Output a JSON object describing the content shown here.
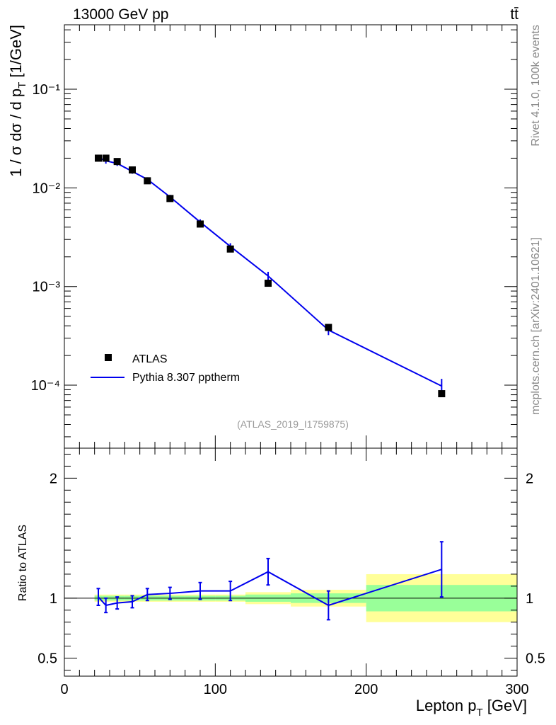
{
  "header": {
    "energy_label": "13000 GeV pp",
    "process_label": "tt̄"
  },
  "side_text": {
    "version": "Rivet 4.1.0,  100k events",
    "source": "mcplots.cern.ch [arXiv:2401.10621]"
  },
  "analysis_label": "(ATLAS_2019_I1759875)",
  "colors": {
    "mc": "#0000ee",
    "data": "#000000",
    "band_inner": "#99ff99",
    "band_outer": "#ffff99"
  },
  "chart_data": [
    {
      "panel": "main",
      "type": "scatter",
      "yscale": "log",
      "ylabel": "1 / σ  dσ / d pT [1/GeV]",
      "ylim": [
        2.3e-05,
        0.45
      ],
      "xlim": [
        0,
        300
      ],
      "y_tick_labels": [
        "10⁻⁴",
        "10⁻³",
        "10⁻²",
        "10⁻¹"
      ],
      "y_tick_values": [
        0.0001,
        0.001,
        0.01,
        0.1
      ],
      "legend": {
        "position": "bottom-left",
        "entries": [
          "ATLAS",
          "Pythia 8.307 pptherm"
        ]
      },
      "series": [
        {
          "name": "ATLAS",
          "style": "markers",
          "x": [
            22.5,
            27.5,
            35,
            45,
            55,
            70,
            90,
            110,
            135,
            175,
            250
          ],
          "y": [
            0.02,
            0.02,
            0.0185,
            0.0152,
            0.0118,
            0.0078,
            0.0043,
            0.0024,
            0.00108,
            0.000385,
            8.2e-05
          ]
        },
        {
          "name": "Pythia 8.307 pptherm",
          "style": "line",
          "x": [
            22.5,
            27.5,
            35,
            45,
            55,
            70,
            90,
            110,
            135,
            175,
            250
          ],
          "y": [
            0.0202,
            0.0188,
            0.0177,
            0.0147,
            0.0122,
            0.0081,
            0.0045,
            0.00255,
            0.00128,
            0.000362,
            9.8e-05
          ],
          "yerr": [
            0.0015,
            0.0012,
            0.001,
            0.0008,
            0.0006,
            0.0004,
            0.0003,
            0.0002,
            0.00013,
            4e-05,
            1.8e-05
          ]
        }
      ]
    },
    {
      "panel": "ratio",
      "type": "line",
      "ylabel": "Ratio to ATLAS",
      "xlabel": "Lepton pT [GeV]",
      "xlim": [
        0,
        300
      ],
      "ylim": [
        0.35,
        2.25
      ],
      "x_tick_labels": [
        "0",
        "100",
        "200",
        "300"
      ],
      "x_tick_values": [
        0,
        100,
        200,
        300
      ],
      "y_tick_labels": [
        "0.5",
        "1",
        "2"
      ],
      "y_tick_values": [
        0.5,
        1,
        2
      ],
      "bins": [
        {
          "lo": 20,
          "hi": 25,
          "inner": 0.02,
          "outer": 0.03
        },
        {
          "lo": 25,
          "hi": 30,
          "inner": 0.02,
          "outer": 0.03
        },
        {
          "lo": 30,
          "hi": 40,
          "inner": 0.02,
          "outer": 0.03
        },
        {
          "lo": 40,
          "hi": 50,
          "inner": 0.02,
          "outer": 0.03
        },
        {
          "lo": 50,
          "hi": 60,
          "inner": 0.02,
          "outer": 0.03
        },
        {
          "lo": 60,
          "hi": 80,
          "inner": 0.02,
          "outer": 0.03
        },
        {
          "lo": 80,
          "hi": 100,
          "inner": 0.02,
          "outer": 0.03
        },
        {
          "lo": 100,
          "hi": 120,
          "inner": 0.02,
          "outer": 0.03
        },
        {
          "lo": 120,
          "hi": 150,
          "inner": 0.03,
          "outer": 0.05
        },
        {
          "lo": 150,
          "hi": 200,
          "inner": 0.04,
          "outer": 0.07
        },
        {
          "lo": 200,
          "hi": 300,
          "inner": 0.11,
          "outer": 0.2
        }
      ],
      "series": [
        {
          "name": "Pythia 8.307 pptherm",
          "x": [
            22.5,
            27.5,
            35,
            45,
            55,
            70,
            90,
            110,
            135,
            175,
            250
          ],
          "y": [
            1.01,
            0.94,
            0.96,
            0.97,
            1.03,
            1.04,
            1.06,
            1.06,
            1.22,
            0.94,
            1.24
          ],
          "yerr": [
            0.07,
            0.06,
            0.05,
            0.05,
            0.05,
            0.05,
            0.07,
            0.08,
            0.11,
            0.12,
            0.23
          ]
        }
      ]
    }
  ]
}
